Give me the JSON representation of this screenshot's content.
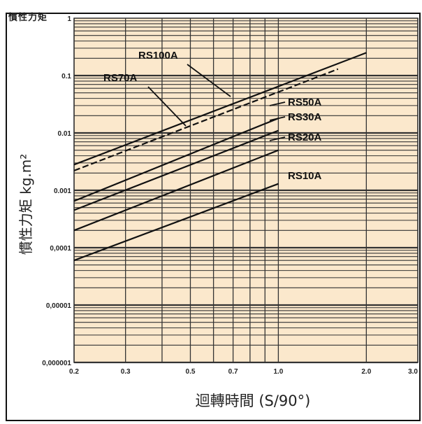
{
  "caption": "慣性力矩",
  "chart_data": {
    "type": "line",
    "xlabel": "迴轉時間  (S/90°)",
    "ylabel": "慣性力矩  kg.m²",
    "x_scale": "log",
    "y_scale": "log",
    "xlim": [
      0.2,
      3.0
    ],
    "ylim": [
      1e-06,
      1
    ],
    "x_ticks": [
      {
        "value": 0.2,
        "label": "0.2"
      },
      {
        "value": 0.3,
        "label": "0.3"
      },
      {
        "value": 0.5,
        "label": "0.5"
      },
      {
        "value": 0.7,
        "label": "0.7"
      },
      {
        "value": 1.0,
        "label": "1.0"
      },
      {
        "value": 2.0,
        "label": "2.0"
      },
      {
        "value": 3.0,
        "label": "3.0"
      }
    ],
    "y_ticks": [
      {
        "value": 1,
        "label": "1"
      },
      {
        "value": 0.1,
        "label": "0.1"
      },
      {
        "value": 0.01,
        "label": "0.01"
      },
      {
        "value": 0.001,
        "label": "0.001"
      },
      {
        "value": 0.0001,
        "label": "0,0001"
      },
      {
        "value": 1e-05,
        "label": "0,00001"
      },
      {
        "value": 1e-06,
        "label": "0,000001"
      }
    ],
    "grid": true,
    "series": [
      {
        "name": "RS100A",
        "style": "solid",
        "x": [
          0.2,
          2.0
        ],
        "y": [
          0.0028,
          0.25
        ]
      },
      {
        "name": "RS70A",
        "style": "dashed",
        "x": [
          0.2,
          1.6
        ],
        "y": [
          0.0022,
          0.13
        ]
      },
      {
        "name": "RS50A",
        "style": "solid",
        "x": [
          0.2,
          1.0
        ],
        "y": [
          0.00065,
          0.018
        ]
      },
      {
        "name": "RS30A",
        "style": "solid",
        "x": [
          0.2,
          1.0
        ],
        "y": [
          0.00045,
          0.011
        ]
      },
      {
        "name": "RS20A",
        "style": "solid",
        "x": [
          0.2,
          1.0
        ],
        "y": [
          0.0002,
          0.005
        ]
      },
      {
        "name": "RS10A",
        "style": "solid",
        "x": [
          0.2,
          1.0
        ],
        "y": [
          6e-05,
          0.0013
        ]
      }
    ]
  },
  "colors": {
    "plot_background": "#fbe8cc",
    "grid": "#333333",
    "series": "#111111"
  }
}
